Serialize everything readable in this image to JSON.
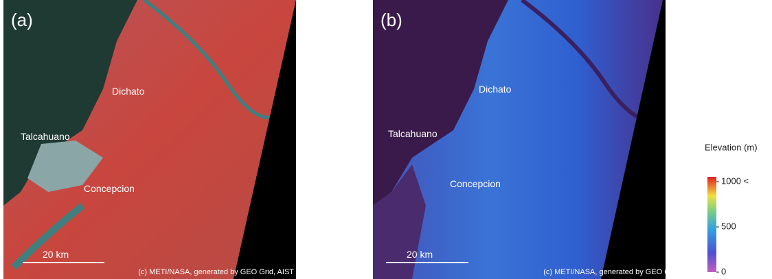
{
  "panels": [
    {
      "label": "(a)",
      "places": [
        "Dichato",
        "Talcahuano",
        "Concepcion"
      ],
      "scale_bar": "20 km",
      "credit": "(c) METI/NASA, generated by GEO Grid, AIST"
    },
    {
      "label": "(b)",
      "places": [
        "Dichato",
        "Talcahuano",
        "Concepcion"
      ],
      "scale_bar": "20 km",
      "credit": "(c) METI/NASA, generated by GEO Grid, AIST"
    }
  ],
  "legend": {
    "title": "Elevation (m)",
    "lim": [
      0,
      1000
    ],
    "ticks": [
      {
        "value": 1000,
        "label": "1000 <"
      },
      500,
      0
    ]
  }
}
